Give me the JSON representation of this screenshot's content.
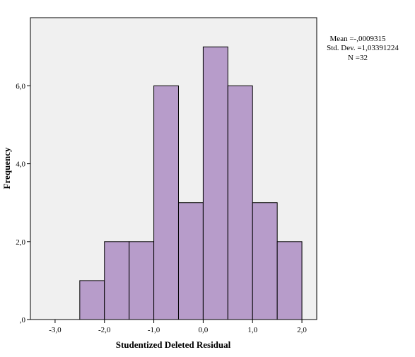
{
  "chart_data": {
    "type": "bar",
    "subtype": "histogram",
    "bins": [
      {
        "from": -2.5,
        "to": -2.0,
        "count": 1
      },
      {
        "from": -2.0,
        "to": -1.5,
        "count": 2
      },
      {
        "from": -1.5,
        "to": -1.0,
        "count": 2
      },
      {
        "from": -1.0,
        "to": -0.5,
        "count": 6
      },
      {
        "from": -0.5,
        "to": 0.0,
        "count": 3
      },
      {
        "from": 0.0,
        "to": 0.5,
        "count": 7
      },
      {
        "from": 0.5,
        "to": 1.0,
        "count": 6
      },
      {
        "from": 1.0,
        "to": 1.5,
        "count": 3
      },
      {
        "from": 1.5,
        "to": 2.0,
        "count": 2
      }
    ],
    "xlabel": "Studentized Deleted Residual",
    "ylabel": "Frequency",
    "xlim": [
      -3.5,
      2.3
    ],
    "ylim": [
      0,
      7.75
    ],
    "x_ticks": [
      {
        "value": -3.0,
        "label": "-3,0"
      },
      {
        "value": -2.0,
        "label": "-2,0"
      },
      {
        "value": -1.0,
        "label": "-1,0"
      },
      {
        "value": 0.0,
        "label": "0,0"
      },
      {
        "value": 1.0,
        "label": "1,0"
      },
      {
        "value": 2.0,
        "label": "2,0"
      }
    ],
    "y_ticks": [
      {
        "value": 0,
        "label": ",0"
      },
      {
        "value": 2,
        "label": "2,0"
      },
      {
        "value": 4,
        "label": "4,0"
      },
      {
        "value": 6,
        "label": "6,0"
      }
    ],
    "stats": {
      "mean": "Mean =-,0009315",
      "std_dev": "Std. Dev. =1,03391224",
      "n": "N =32"
    },
    "grid": false,
    "colors": {
      "bar_fill": "#b79cca",
      "bar_stroke": "#000000",
      "plot_background": "#f0f0f0"
    }
  }
}
